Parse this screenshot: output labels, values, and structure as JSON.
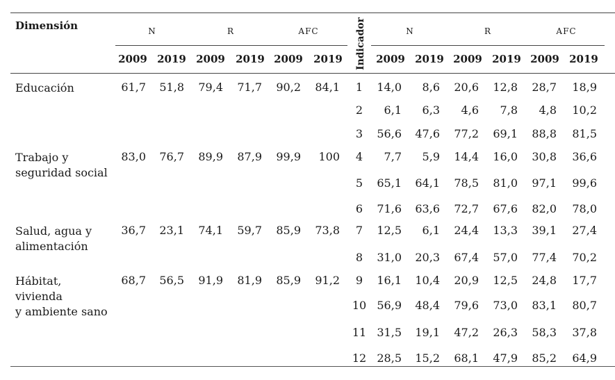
{
  "header": {
    "dimension_label": "Dimensión",
    "indicator_label": "Indicador",
    "groups_left": [
      "N",
      "R",
      "AFC"
    ],
    "groups_right": [
      "N",
      "R",
      "AFC"
    ],
    "years": [
      "2009",
      "2019"
    ]
  },
  "dimensions": [
    {
      "label_lines": [
        "Educación"
      ],
      "values": [
        "61,7",
        "51,8",
        "79,4",
        "71,7",
        "90,2",
        "84,1"
      ]
    },
    {
      "label_lines": [
        "Trabajo y",
        "seguridad social"
      ],
      "values": [
        "83,0",
        "76,7",
        "89,9",
        "87,9",
        "99,9",
        "100"
      ]
    },
    {
      "label_lines": [
        "Salud, agua y",
        "alimentación"
      ],
      "values": [
        "36,7",
        "23,1",
        "74,1",
        "59,7",
        "85,9",
        "73,8"
      ]
    },
    {
      "label_lines": [
        "Hábitat,",
        "vivienda",
        "y ambiente sano"
      ],
      "values": [
        "68,7",
        "56,5",
        "91,9",
        "81,9",
        "85,9",
        "91,2"
      ]
    }
  ],
  "indicators": [
    {
      "id": "1",
      "values": [
        "14,0",
        "8,6",
        "20,6",
        "12,8",
        "28,7",
        "18,9"
      ]
    },
    {
      "id": "2",
      "values": [
        "6,1",
        "6,3",
        "4,6",
        "7,8",
        "4,8",
        "10,2"
      ]
    },
    {
      "id": "3",
      "values": [
        "56,6",
        "47,6",
        "77,2",
        "69,1",
        "88,8",
        "81,5"
      ]
    },
    {
      "id": "4",
      "values": [
        "7,7",
        "5,9",
        "14,4",
        "16,0",
        "30,8",
        "36,6"
      ]
    },
    {
      "id": "5",
      "values": [
        "65,1",
        "64,1",
        "78,5",
        "81,0",
        "97,1",
        "99,6"
      ]
    },
    {
      "id": "6",
      "values": [
        "71,6",
        "63,6",
        "72,7",
        "67,6",
        "82,0",
        "78,0"
      ]
    },
    {
      "id": "7",
      "values": [
        "12,5",
        "6,1",
        "24,4",
        "13,3",
        "39,1",
        "27,4"
      ]
    },
    {
      "id": "8",
      "values": [
        "31,0",
        "20,3",
        "67,4",
        "57,0",
        "77,4",
        "70,2"
      ]
    },
    {
      "id": "9",
      "values": [
        "16,1",
        "10,4",
        "20,9",
        "12,5",
        "24,8",
        "17,7"
      ]
    },
    {
      "id": "10",
      "values": [
        "56,9",
        "48,4",
        "79,6",
        "73,0",
        "83,1",
        "80,7"
      ]
    },
    {
      "id": "11",
      "values": [
        "31,5",
        "19,1",
        "47,2",
        "26,3",
        "58,3",
        "37,8"
      ]
    },
    {
      "id": "12",
      "values": [
        "28,5",
        "15,2",
        "68,1",
        "47,9",
        "85,2",
        "64,9"
      ]
    }
  ]
}
